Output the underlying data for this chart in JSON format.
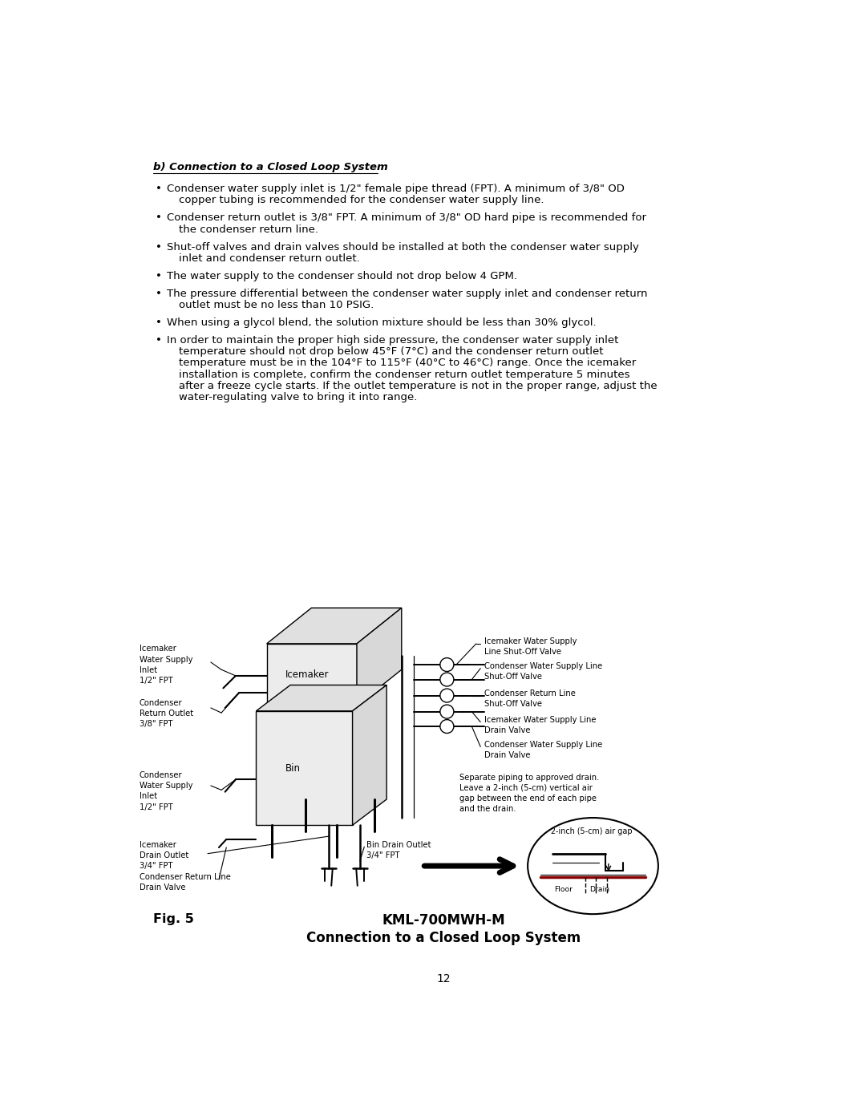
{
  "background_color": "#ffffff",
  "page_width": 10.8,
  "page_height": 13.97,
  "dpi": 100,
  "section_title": "b) Connection to a Closed Loop System",
  "bullet_points": [
    [
      "Condenser water supply inlet is 1/2\" female pipe thread (FPT). A minimum of 3/8\" OD",
      "copper tubing is recommended for the condenser water supply line."
    ],
    [
      "Condenser return outlet is 3/8\" FPT. A minimum of 3/8\" OD hard pipe is recommended for",
      "the condenser return line."
    ],
    [
      "Shut-off valves and drain valves should be installed at both the condenser water supply",
      "inlet and condenser return outlet."
    ],
    [
      "The water supply to the condenser should not drop below 4 GPM."
    ],
    [
      "The pressure differential between the condenser water supply inlet and condenser return",
      "outlet must be no less than 10 PSIG."
    ],
    [
      "When using a glycol blend, the solution mixture should be less than 30% glycol."
    ],
    [
      "In order to maintain the proper high side pressure, the condenser water supply inlet",
      "temperature should not drop below 45°F (7°C) and the condenser return outlet",
      "temperature must be in the 104°F to 115°F (40°C to 46°C) range. Once the icemaker",
      "installation is complete, confirm the condenser return outlet temperature 5 minutes",
      "after a freeze cycle starts. If the outlet temperature is not in the proper range, adjust the",
      "water-regulating valve to bring it into range."
    ]
  ],
  "fig_label": "Fig. 5",
  "fig_title_line1": "KML-700MWH-M",
  "fig_title_line2": "Connection to a Closed Loop System",
  "page_number": "12",
  "text_fontsize": 9.5,
  "label_fontsize": 7.2,
  "title_fontsize": 11.5
}
